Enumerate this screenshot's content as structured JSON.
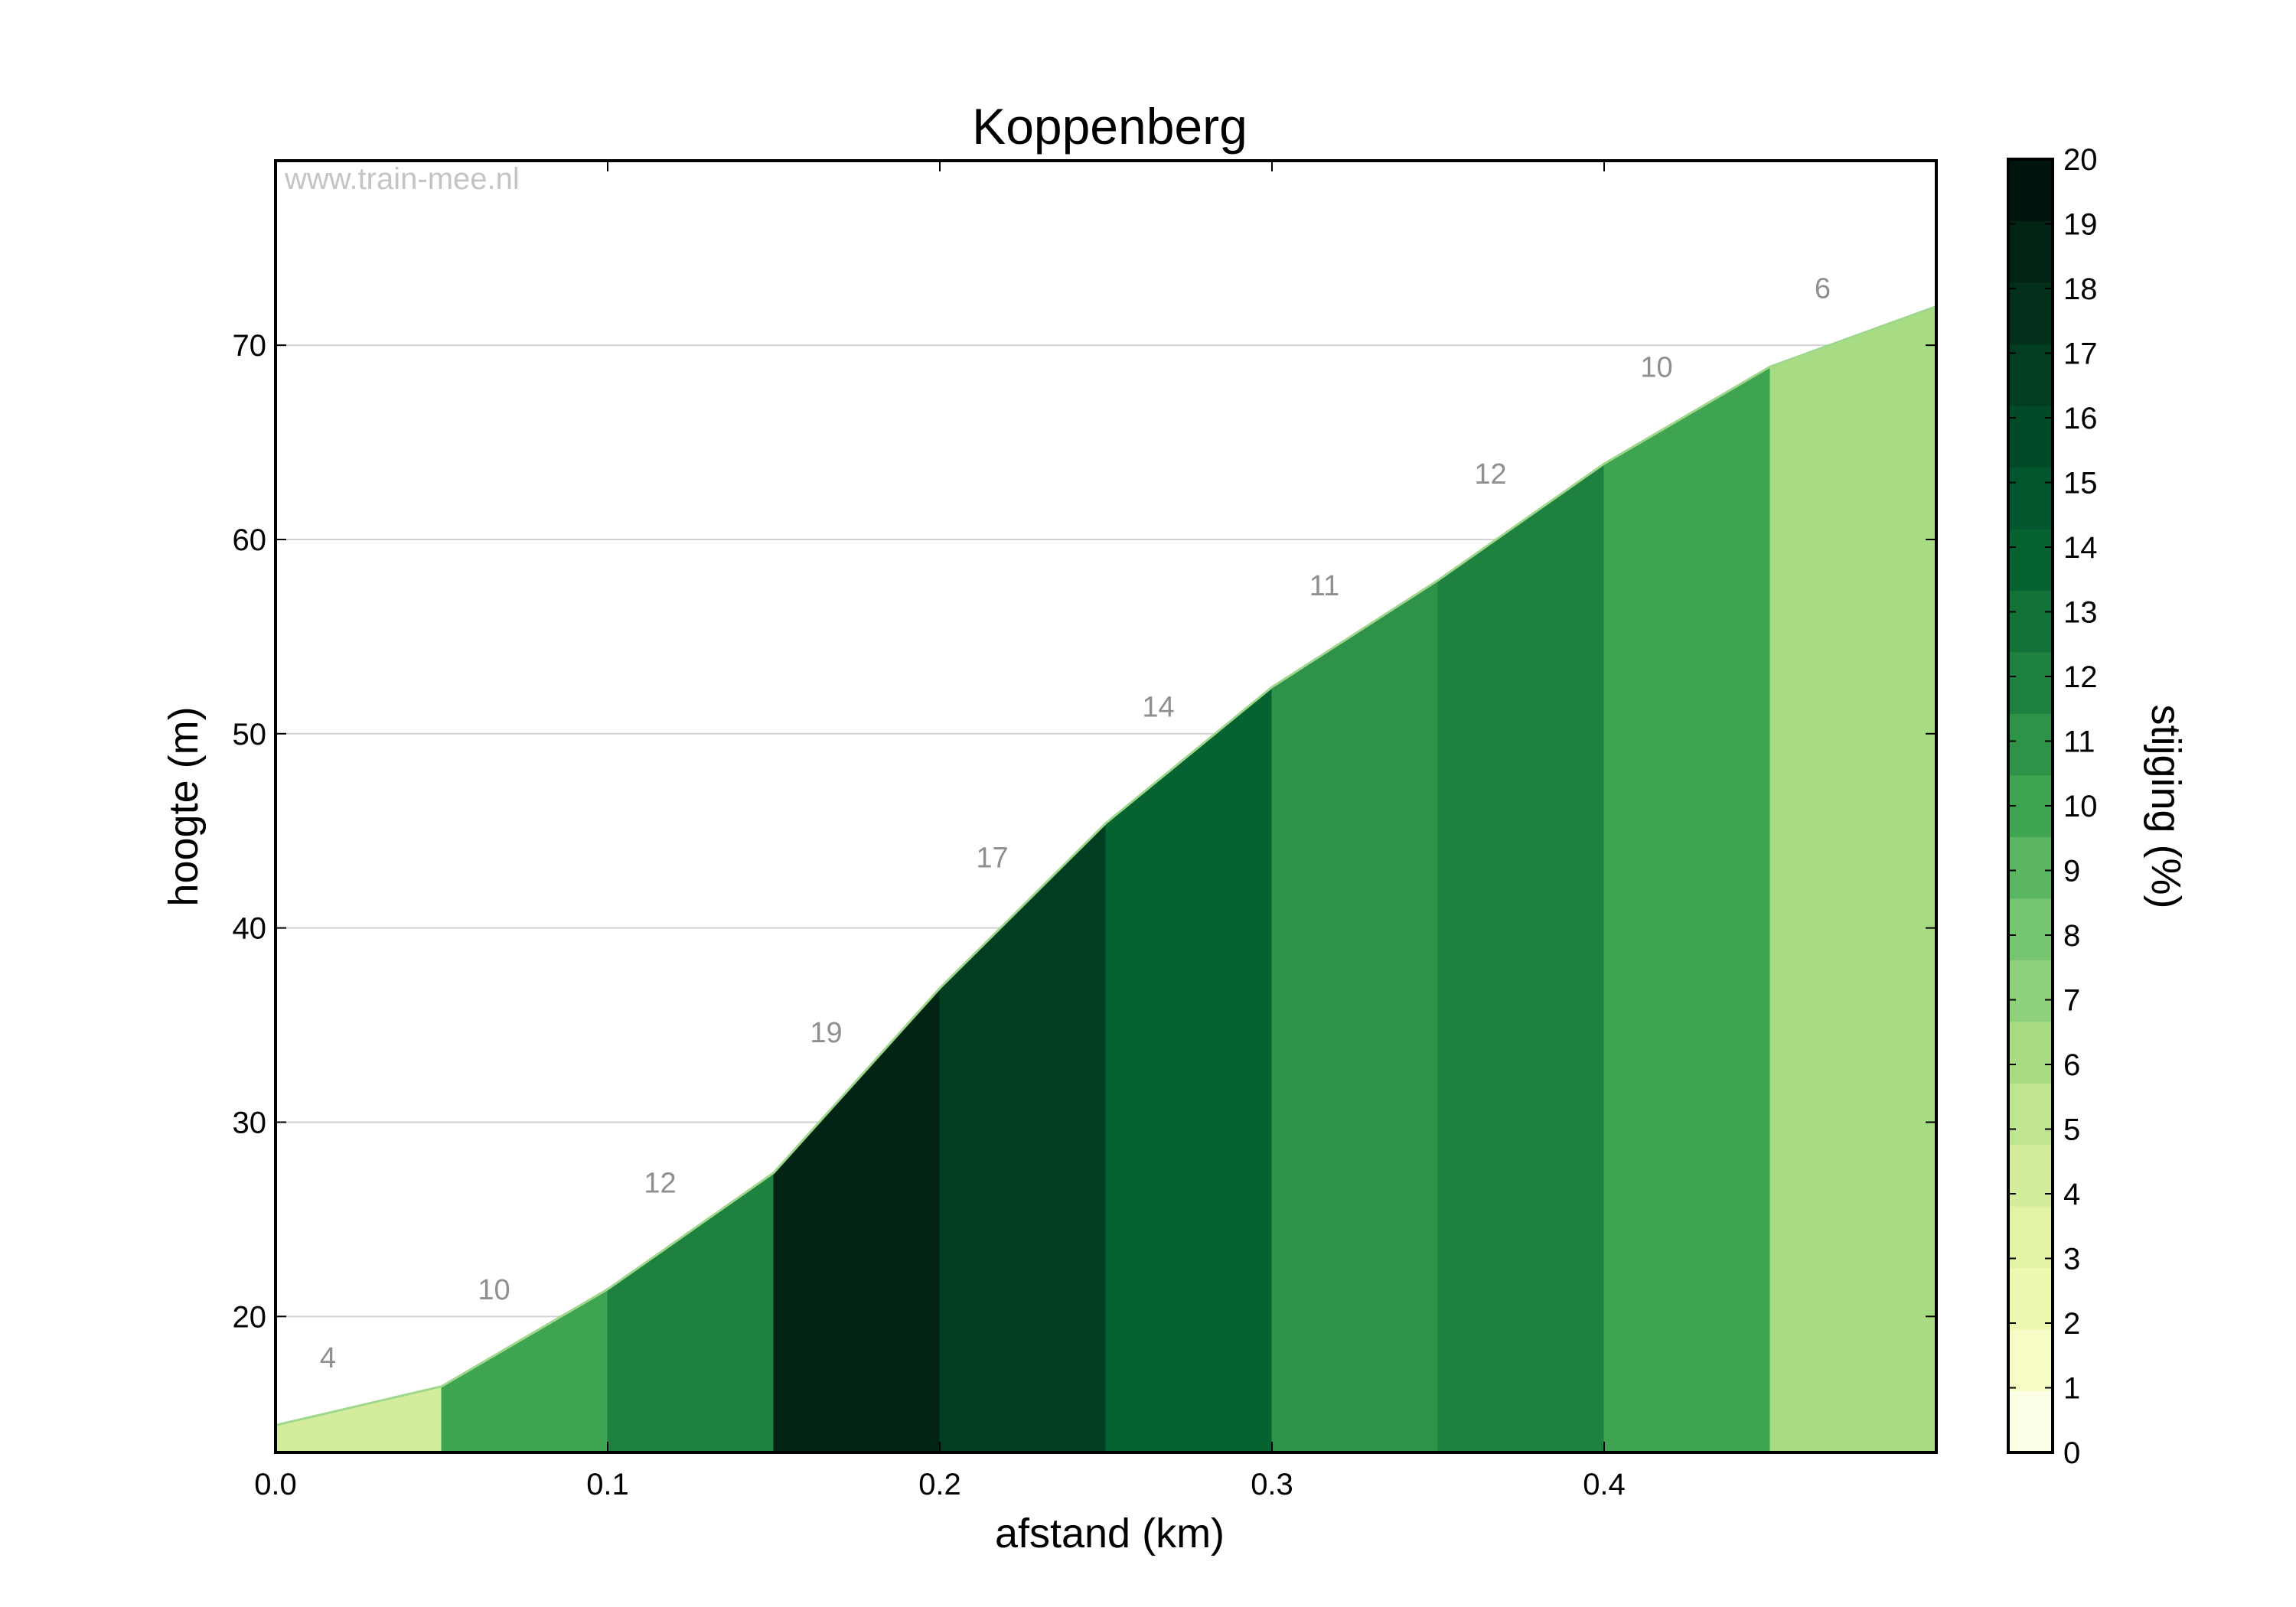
{
  "chart_data": {
    "type": "area",
    "title": "Koppenberg",
    "xlabel": "afstand (km)",
    "ylabel": "hoogte (m)",
    "watermark": "www.train-mee.nl",
    "xlim": [
      0,
      0.5
    ],
    "ylim": [
      13,
      79.5
    ],
    "xticks": [
      0.0,
      0.1,
      0.2,
      0.3,
      0.4
    ],
    "xtick_labels": [
      "0.0",
      "0.1",
      "0.2",
      "0.3",
      "0.4"
    ],
    "yticks": [
      20,
      30,
      40,
      50,
      60,
      70
    ],
    "ytick_labels": [
      "20",
      "30",
      "40",
      "50",
      "60",
      "70"
    ],
    "grid": "horizontal",
    "profile": [
      {
        "x": 0.0,
        "y": 14.4
      },
      {
        "x": 0.05,
        "y": 16.4
      },
      {
        "x": 0.1,
        "y": 21.4
      },
      {
        "x": 0.15,
        "y": 27.4
      },
      {
        "x": 0.2,
        "y": 36.9
      },
      {
        "x": 0.25,
        "y": 45.4
      },
      {
        "x": 0.3,
        "y": 52.4
      },
      {
        "x": 0.35,
        "y": 57.9
      },
      {
        "x": 0.4,
        "y": 63.9
      },
      {
        "x": 0.45,
        "y": 68.9
      },
      {
        "x": 0.5,
        "y": 72.0
      }
    ],
    "segments": [
      {
        "x0": 0.0,
        "x1": 0.05,
        "grade": 4,
        "label": "4"
      },
      {
        "x0": 0.05,
        "x1": 0.1,
        "grade": 10,
        "label": "10"
      },
      {
        "x0": 0.1,
        "x1": 0.15,
        "grade": 12,
        "label": "12"
      },
      {
        "x0": 0.15,
        "x1": 0.2,
        "grade": 19,
        "label": "19"
      },
      {
        "x0": 0.2,
        "x1": 0.25,
        "grade": 17,
        "label": "17"
      },
      {
        "x0": 0.25,
        "x1": 0.3,
        "grade": 14,
        "label": "14"
      },
      {
        "x0": 0.3,
        "x1": 0.35,
        "grade": 11,
        "label": "11"
      },
      {
        "x0": 0.35,
        "x1": 0.4,
        "grade": 12,
        "label": "12"
      },
      {
        "x0": 0.4,
        "x1": 0.45,
        "grade": 10,
        "label": "10"
      },
      {
        "x0": 0.45,
        "x1": 0.5,
        "grade": 6,
        "label": "6"
      }
    ],
    "colorbar": {
      "label": "stijging (%)",
      "range": [
        0,
        20
      ],
      "ticks": [
        "0",
        "1",
        "2",
        "3",
        "4",
        "5",
        "6",
        "7",
        "8",
        "9",
        "10",
        "11",
        "12",
        "13",
        "14",
        "15",
        "16",
        "17",
        "18",
        "19",
        "20"
      ],
      "colors": [
        "#fcfee6",
        "#f7fcc6",
        "#eef8b1",
        "#e2f3a6",
        "#d3ed9c",
        "#c0e592",
        "#a8dc84",
        "#8fd17b",
        "#75c571",
        "#5ab663",
        "#3fa452",
        "#2e9248",
        "#1f813f",
        "#127237",
        "#066331",
        "#02562d",
        "#004a27",
        "#013e21",
        "#02301b",
        "#022414",
        "#01150c"
      ]
    },
    "colors": {
      "outline": "#9fd78c",
      "grid": "#d2d2d2",
      "frame": "#000000"
    }
  }
}
